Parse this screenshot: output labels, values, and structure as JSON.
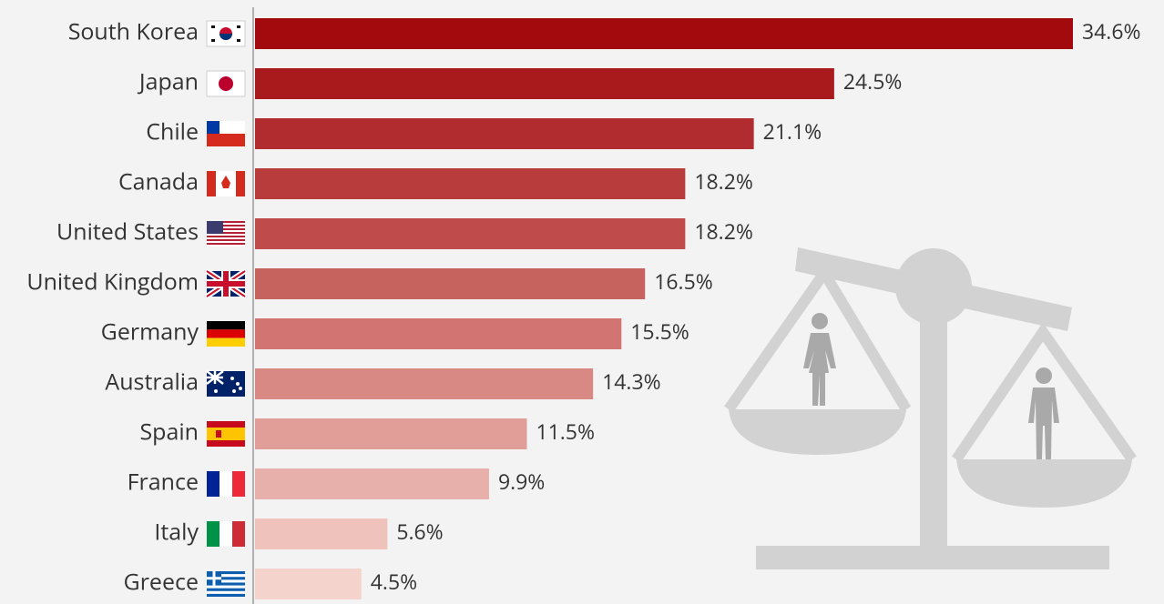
{
  "chart_data": {
    "type": "bar",
    "orientation": "horizontal",
    "categories": [
      "South Korea",
      "Japan",
      "Chile",
      "Canada",
      "United States",
      "United Kingdom",
      "Germany",
      "Australia",
      "Spain",
      "France",
      "Italy",
      "Greece"
    ],
    "values": [
      34.6,
      24.5,
      21.1,
      18.2,
      18.2,
      16.5,
      15.5,
      14.3,
      11.5,
      9.9,
      5.6,
      4.5
    ],
    "value_labels": [
      "34.6%",
      "24.5%",
      "21.1%",
      "18.2%",
      "18.2%",
      "16.5%",
      "15.5%",
      "14.3%",
      "11.5%",
      "9.9%",
      "5.6%",
      "4.5%"
    ],
    "colors": [
      "#a20a0d",
      "#a91a1d",
      "#b12c2e",
      "#b83c3c",
      "#bf4b4a",
      "#c6635f",
      "#d27572",
      "#d98983",
      "#e19d97",
      "#e8b0aa",
      "#efc2bc",
      "#f4d3cc"
    ]
  }
}
